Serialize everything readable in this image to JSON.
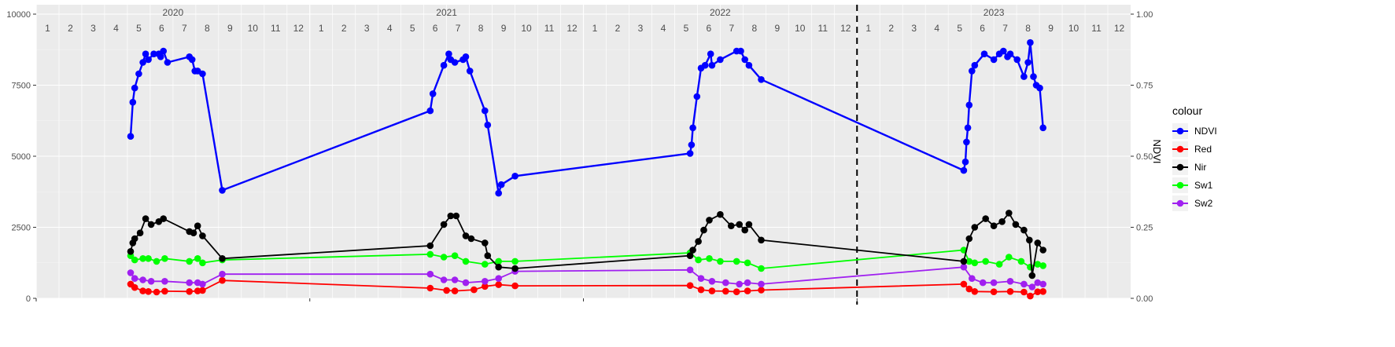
{
  "chart_data": {
    "type": "line",
    "y_left_ticks": [
      "0",
      "2500",
      "5000",
      "7500",
      "10000"
    ],
    "y_left_range": [
      0,
      10000
    ],
    "y_right_title": "NDVI",
    "y_right_ticks": [
      "0.00",
      "0.25",
      "0.50",
      "0.75",
      "1.00"
    ],
    "y_right_range": [
      0,
      1
    ],
    "x_range": [
      2020.0,
      2024.0
    ],
    "years": [
      {
        "label": "2020",
        "x": 2020.5
      },
      {
        "label": "2021",
        "x": 2021.5
      },
      {
        "label": "2022",
        "x": 2022.5
      },
      {
        "label": "2023",
        "x": 2023.5
      }
    ],
    "month_labels": [
      "1",
      "2",
      "3",
      "4",
      "5",
      "6",
      "7",
      "8",
      "9",
      "10",
      "11",
      "12"
    ],
    "vline_x": 2023.0,
    "grid": true,
    "legend": {
      "title": "colour",
      "position": "right"
    },
    "series": [
      {
        "name": "NDVI",
        "axis": "right",
        "color": "#0000ff",
        "points": [
          [
            2020.345,
            0.57
          ],
          [
            2020.353,
            0.69
          ],
          [
            2020.36,
            0.74
          ],
          [
            2020.375,
            0.79
          ],
          [
            2020.39,
            0.83
          ],
          [
            2020.4,
            0.86
          ],
          [
            2020.41,
            0.84
          ],
          [
            2020.43,
            0.86
          ],
          [
            2020.448,
            0.86
          ],
          [
            2020.455,
            0.85
          ],
          [
            2020.465,
            0.87
          ],
          [
            2020.48,
            0.83
          ],
          [
            2020.56,
            0.85
          ],
          [
            2020.57,
            0.84
          ],
          [
            2020.58,
            0.8
          ],
          [
            2020.59,
            0.8
          ],
          [
            2020.608,
            0.79
          ],
          [
            2020.68,
            0.38
          ],
          [
            2021.44,
            0.66
          ],
          [
            2021.45,
            0.72
          ],
          [
            2021.49,
            0.82
          ],
          [
            2021.508,
            0.86
          ],
          [
            2021.515,
            0.84
          ],
          [
            2021.53,
            0.83
          ],
          [
            2021.56,
            0.84
          ],
          [
            2021.57,
            0.85
          ],
          [
            2021.585,
            0.8
          ],
          [
            2021.64,
            0.66
          ],
          [
            2021.65,
            0.61
          ],
          [
            2021.69,
            0.37
          ],
          [
            2021.7,
            0.4
          ],
          [
            2021.75,
            0.43
          ],
          [
            2022.39,
            0.51
          ],
          [
            2022.395,
            0.54
          ],
          [
            2022.4,
            0.6
          ],
          [
            2022.415,
            0.71
          ],
          [
            2022.43,
            0.81
          ],
          [
            2022.445,
            0.82
          ],
          [
            2022.465,
            0.86
          ],
          [
            2022.47,
            0.82
          ],
          [
            2022.5,
            0.84
          ],
          [
            2022.56,
            0.87
          ],
          [
            2022.575,
            0.87
          ],
          [
            2022.59,
            0.84
          ],
          [
            2022.605,
            0.82
          ],
          [
            2022.65,
            0.77
          ],
          [
            2023.39,
            0.45
          ],
          [
            2023.396,
            0.48
          ],
          [
            2023.4,
            0.55
          ],
          [
            2023.405,
            0.6
          ],
          [
            2023.41,
            0.68
          ],
          [
            2023.42,
            0.8
          ],
          [
            2023.43,
            0.82
          ],
          [
            2023.465,
            0.86
          ],
          [
            2023.5,
            0.84
          ],
          [
            2023.52,
            0.86
          ],
          [
            2023.535,
            0.87
          ],
          [
            2023.55,
            0.85
          ],
          [
            2023.56,
            0.86
          ],
          [
            2023.585,
            0.84
          ],
          [
            2023.61,
            0.78
          ],
          [
            2023.625,
            0.83
          ],
          [
            2023.633,
            0.9
          ],
          [
            2023.645,
            0.78
          ],
          [
            2023.655,
            0.75
          ],
          [
            2023.668,
            0.74
          ],
          [
            2023.68,
            0.6
          ]
        ]
      },
      {
        "name": "Red",
        "axis": "left",
        "color": "#ff0000",
        "points": [
          [
            2020.345,
            500
          ],
          [
            2020.36,
            380
          ],
          [
            2020.39,
            260
          ],
          [
            2020.41,
            240
          ],
          [
            2020.44,
            220
          ],
          [
            2020.47,
            250
          ],
          [
            2020.56,
            240
          ],
          [
            2020.59,
            260
          ],
          [
            2020.608,
            280
          ],
          [
            2020.68,
            630
          ],
          [
            2021.44,
            360
          ],
          [
            2021.5,
            280
          ],
          [
            2021.53,
            260
          ],
          [
            2021.6,
            300
          ],
          [
            2021.64,
            420
          ],
          [
            2021.69,
            480
          ],
          [
            2021.75,
            440
          ],
          [
            2022.39,
            450
          ],
          [
            2022.43,
            300
          ],
          [
            2022.47,
            260
          ],
          [
            2022.52,
            250
          ],
          [
            2022.56,
            230
          ],
          [
            2022.6,
            260
          ],
          [
            2022.65,
            290
          ],
          [
            2023.39,
            500
          ],
          [
            2023.41,
            330
          ],
          [
            2023.43,
            240
          ],
          [
            2023.5,
            230
          ],
          [
            2023.56,
            240
          ],
          [
            2023.61,
            220
          ],
          [
            2023.633,
            80
          ],
          [
            2023.66,
            230
          ],
          [
            2023.68,
            240
          ]
        ]
      },
      {
        "name": "Nir",
        "axis": "left",
        "color": "#000000",
        "points": [
          [
            2020.345,
            1650
          ],
          [
            2020.353,
            1950
          ],
          [
            2020.36,
            2100
          ],
          [
            2020.38,
            2300
          ],
          [
            2020.4,
            2800
          ],
          [
            2020.42,
            2600
          ],
          [
            2020.448,
            2700
          ],
          [
            2020.465,
            2800
          ],
          [
            2020.56,
            2350
          ],
          [
            2020.575,
            2300
          ],
          [
            2020.59,
            2550
          ],
          [
            2020.608,
            2200
          ],
          [
            2020.68,
            1400
          ],
          [
            2021.44,
            1850
          ],
          [
            2021.49,
            2600
          ],
          [
            2021.515,
            2900
          ],
          [
            2021.535,
            2900
          ],
          [
            2021.57,
            2200
          ],
          [
            2021.59,
            2100
          ],
          [
            2021.64,
            1950
          ],
          [
            2021.65,
            1500
          ],
          [
            2021.69,
            1100
          ],
          [
            2021.75,
            1050
          ],
          [
            2022.39,
            1500
          ],
          [
            2022.4,
            1700
          ],
          [
            2022.42,
            2000
          ],
          [
            2022.44,
            2400
          ],
          [
            2022.46,
            2750
          ],
          [
            2022.5,
            2950
          ],
          [
            2022.54,
            2550
          ],
          [
            2022.57,
            2600
          ],
          [
            2022.59,
            2400
          ],
          [
            2022.605,
            2600
          ],
          [
            2022.65,
            2050
          ],
          [
            2023.39,
            1300
          ],
          [
            2023.41,
            2100
          ],
          [
            2023.43,
            2500
          ],
          [
            2023.47,
            2800
          ],
          [
            2023.5,
            2550
          ],
          [
            2023.53,
            2700
          ],
          [
            2023.555,
            3000
          ],
          [
            2023.58,
            2600
          ],
          [
            2023.61,
            2400
          ],
          [
            2023.63,
            2050
          ],
          [
            2023.64,
            800
          ],
          [
            2023.66,
            1950
          ],
          [
            2023.68,
            1700
          ]
        ]
      },
      {
        "name": "Sw1",
        "axis": "left",
        "color": "#00ff00",
        "points": [
          [
            2020.345,
            1500
          ],
          [
            2020.36,
            1350
          ],
          [
            2020.39,
            1400
          ],
          [
            2020.41,
            1400
          ],
          [
            2020.44,
            1300
          ],
          [
            2020.47,
            1400
          ],
          [
            2020.56,
            1300
          ],
          [
            2020.59,
            1400
          ],
          [
            2020.608,
            1250
          ],
          [
            2020.68,
            1350
          ],
          [
            2021.44,
            1550
          ],
          [
            2021.49,
            1450
          ],
          [
            2021.53,
            1500
          ],
          [
            2021.57,
            1300
          ],
          [
            2021.64,
            1200
          ],
          [
            2021.69,
            1300
          ],
          [
            2021.75,
            1300
          ],
          [
            2022.39,
            1600
          ],
          [
            2022.42,
            1350
          ],
          [
            2022.46,
            1400
          ],
          [
            2022.5,
            1300
          ],
          [
            2022.56,
            1300
          ],
          [
            2022.6,
            1250
          ],
          [
            2022.65,
            1050
          ],
          [
            2023.39,
            1700
          ],
          [
            2023.41,
            1300
          ],
          [
            2023.43,
            1250
          ],
          [
            2023.47,
            1300
          ],
          [
            2023.52,
            1200
          ],
          [
            2023.555,
            1450
          ],
          [
            2023.6,
            1300
          ],
          [
            2023.633,
            1100
          ],
          [
            2023.66,
            1200
          ],
          [
            2023.68,
            1150
          ]
        ]
      },
      {
        "name": "Sw2",
        "axis": "left",
        "color": "#a020f0",
        "points": [
          [
            2020.345,
            900
          ],
          [
            2020.36,
            700
          ],
          [
            2020.39,
            650
          ],
          [
            2020.42,
            600
          ],
          [
            2020.47,
            600
          ],
          [
            2020.56,
            550
          ],
          [
            2020.59,
            550
          ],
          [
            2020.608,
            500
          ],
          [
            2020.68,
            850
          ],
          [
            2021.44,
            850
          ],
          [
            2021.49,
            650
          ],
          [
            2021.53,
            650
          ],
          [
            2021.57,
            550
          ],
          [
            2021.64,
            600
          ],
          [
            2021.69,
            700
          ],
          [
            2021.75,
            950
          ],
          [
            2022.39,
            1000
          ],
          [
            2022.43,
            700
          ],
          [
            2022.47,
            600
          ],
          [
            2022.52,
            550
          ],
          [
            2022.57,
            500
          ],
          [
            2022.6,
            550
          ],
          [
            2022.65,
            500
          ],
          [
            2023.39,
            1100
          ],
          [
            2023.42,
            700
          ],
          [
            2023.46,
            550
          ],
          [
            2023.5,
            550
          ],
          [
            2023.56,
            600
          ],
          [
            2023.61,
            500
          ],
          [
            2023.64,
            400
          ],
          [
            2023.66,
            550
          ],
          [
            2023.68,
            500
          ]
        ]
      }
    ]
  }
}
